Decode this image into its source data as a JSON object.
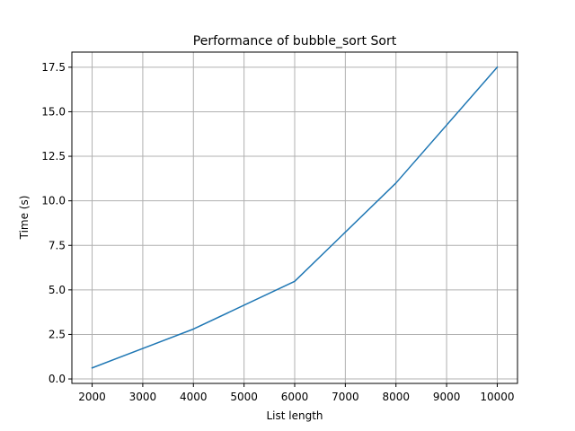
{
  "chart_data": {
    "type": "line",
    "title": "Performance of bubble_sort Sort",
    "xlabel": "List length",
    "ylabel": "Time (s)",
    "xlim": [
      1600,
      10400
    ],
    "ylim": [
      -0.25,
      18.35
    ],
    "grid": true,
    "x_ticks": [
      2000,
      3000,
      4000,
      5000,
      6000,
      7000,
      8000,
      9000,
      10000
    ],
    "x_tick_labels": [
      "2000",
      "3000",
      "4000",
      "5000",
      "6000",
      "7000",
      "8000",
      "9000",
      "10000"
    ],
    "y_ticks": [
      0,
      2.5,
      5,
      7.5,
      10,
      12.5,
      15,
      17.5
    ],
    "y_tick_labels": [
      "0.0",
      "2.5",
      "5.0",
      "7.5",
      "10.0",
      "12.5",
      "15.0",
      "17.5"
    ],
    "series": [
      {
        "color": "#1f77b4",
        "x": [
          2000,
          4000,
          6000,
          8000,
          10000
        ],
        "y": [
          0.62,
          2.8,
          5.48,
          11.0,
          17.5
        ]
      }
    ]
  }
}
